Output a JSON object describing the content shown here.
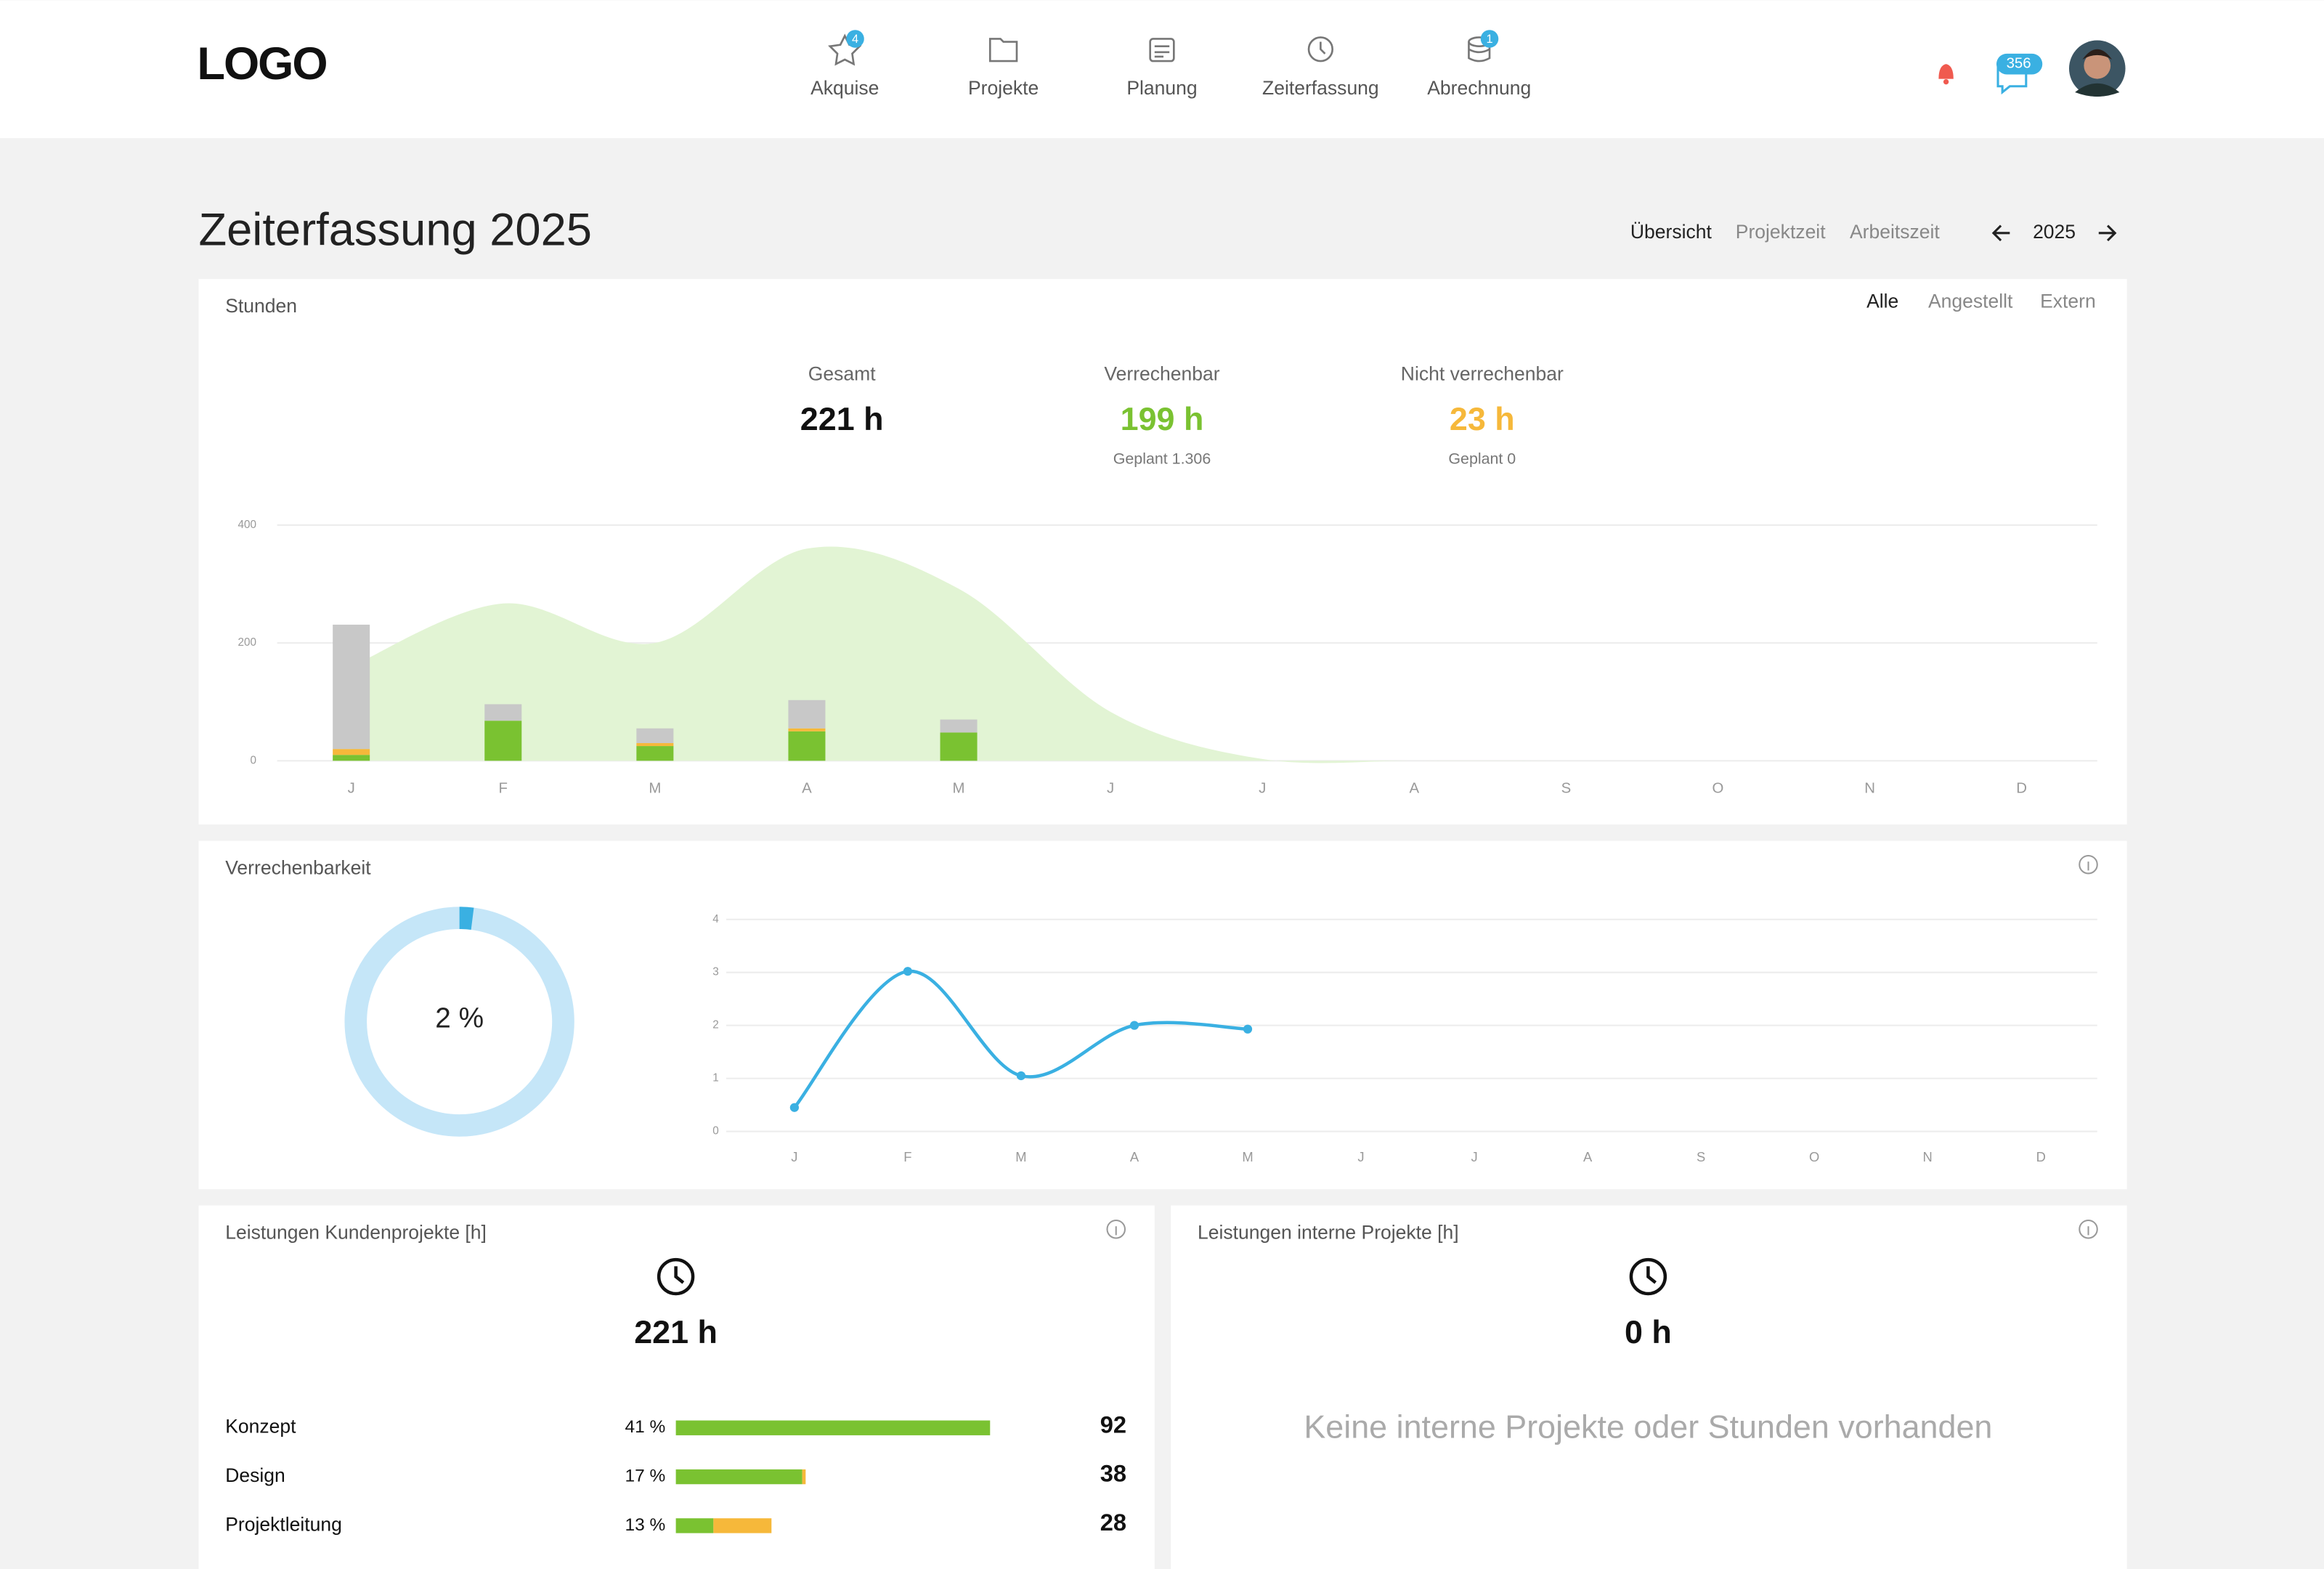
{
  "nav": {
    "logo": "LOGO",
    "items": [
      {
        "label": "Akquise",
        "badge": "4"
      },
      {
        "label": "Projekte"
      },
      {
        "label": "Planung"
      },
      {
        "label": "Zeiterfassung"
      },
      {
        "label": "Abrechnung",
        "badge": "1"
      }
    ],
    "messages_badge": "356"
  },
  "page": {
    "title": "Zeiterfassung 2025",
    "tabs": [
      "Übersicht",
      "Projektzeit",
      "Arbeitszeit"
    ],
    "year": "2025"
  },
  "hours": {
    "title": "Stunden",
    "filters": [
      "Alle",
      "Angestellt",
      "Extern"
    ],
    "kpis": [
      {
        "label": "Gesamt",
        "value": "221 h"
      },
      {
        "label": "Verrechenbar",
        "value": "199 h",
        "sub": "Geplant 1.306"
      },
      {
        "label": "Nicht verrechenbar",
        "value": "23 h",
        "sub": "Geplant 0"
      }
    ],
    "chart": {
      "type": "bar",
      "categories": [
        "J",
        "F",
        "M",
        "A",
        "M",
        "J",
        "J",
        "A",
        "S",
        "O",
        "N",
        "D"
      ],
      "ylim": [
        0,
        400
      ],
      "yticks": [
        0,
        200,
        400
      ],
      "grid": true,
      "series": [
        {
          "color": "#7ac231",
          "values": [
            10,
            68,
            25,
            50,
            48,
            0,
            0,
            0,
            0,
            0,
            0,
            0
          ]
        },
        {
          "color": "#f6b83a",
          "values": [
            10,
            0,
            5,
            5,
            0,
            0,
            0,
            0,
            0,
            0,
            0,
            0
          ]
        },
        {
          "color": "#c8c8c8",
          "values": [
            211,
            28,
            25,
            48,
            22,
            0,
            0,
            0,
            0,
            0,
            0,
            0
          ]
        }
      ],
      "area": {
        "color": "#e2f4d4",
        "values": [
          160,
          267,
          200,
          360,
          292,
          83,
          3,
          0,
          0,
          0,
          0,
          0
        ]
      }
    }
  },
  "billability": {
    "title": "Verrechenbarkeit",
    "donut": {
      "value": 2,
      "label": "2 %"
    },
    "chart": {
      "type": "line",
      "categories": [
        "J",
        "F",
        "M",
        "A",
        "M",
        "J",
        "J",
        "A",
        "S",
        "O",
        "N",
        "D"
      ],
      "ylim": [
        0,
        4
      ],
      "yticks": [
        0,
        1,
        2,
        3,
        4
      ],
      "grid": true,
      "color": "#3ab0e2",
      "values": [
        0.45,
        3.02,
        1.05,
        2,
        1.93,
        null,
        null,
        null,
        null,
        null,
        null,
        null
      ]
    }
  },
  "client": {
    "title": "Leistungen Kundenprojekte [h]",
    "total": "221 h",
    "rows": [
      {
        "label": "Konzept",
        "share": "41 %",
        "billable": 92,
        "nonbillable": 0,
        "total": "92"
      },
      {
        "label": "Design",
        "share": "17 %",
        "billable": 37,
        "nonbillable": 1,
        "total": "38"
      },
      {
        "label": "Projektleitung",
        "share": "13 %",
        "billable": 11,
        "nonbillable": 17,
        "total": "28"
      }
    ]
  },
  "internal": {
    "title": "Leistungen interne Projekte [h]",
    "total": "0 h",
    "empty": "Keine interne Projekte oder Stunden vorhanden"
  }
}
